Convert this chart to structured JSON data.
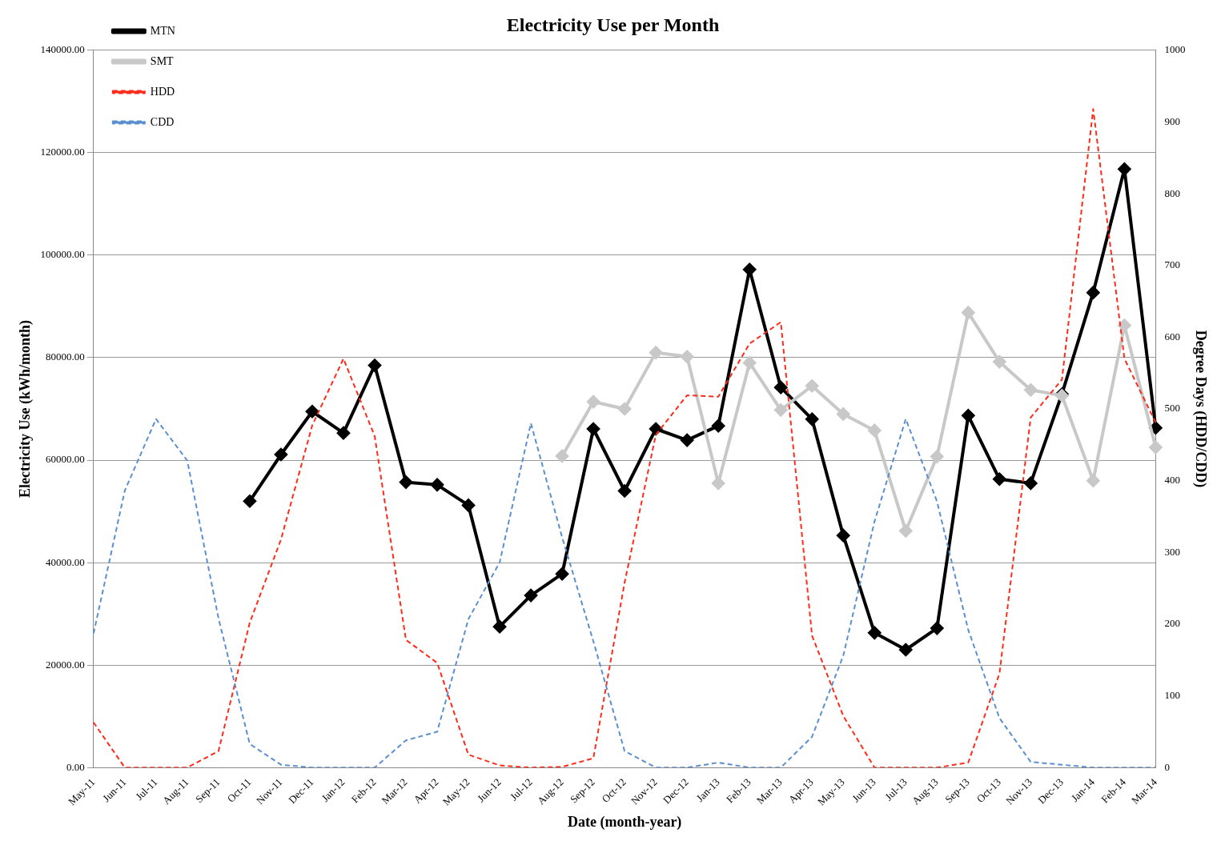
{
  "chart_data": {
    "type": "line",
    "title": "Electricity Use per Month",
    "xlabel": "Date (month-year)",
    "ylabel": "Electricity Use (kWh/month)",
    "y2label": "Degree Days (HDD/CDD)",
    "categories": [
      "May-11",
      "Jun-11",
      "Jul-11",
      "Aug-11",
      "Sep-11",
      "Oct-11",
      "Nov-11",
      "Dec-11",
      "Jan-12",
      "Feb-12",
      "Mar-12",
      "Apr-12",
      "May-12",
      "Jun-12",
      "Jul-12",
      "Aug-12",
      "Sep-12",
      "Oct-12",
      "Nov-12",
      "Dec-12",
      "Jan-13",
      "Feb-13",
      "Mar-13",
      "Apr-13",
      "May-13",
      "Jun-13",
      "Jul-13",
      "Aug-13",
      "Sep-13",
      "Oct-13",
      "Nov-13",
      "Dec-13",
      "Jan-14",
      "Feb-14",
      "Mar-14"
    ],
    "series": [
      {
        "name": "MTN",
        "color": "#000000",
        "marker": "diamond",
        "line_style": "solid",
        "values": [
          null,
          null,
          null,
          null,
          null,
          52000,
          61100,
          69500,
          65300,
          78500,
          55700,
          55200,
          51200,
          27500,
          33600,
          37800,
          66100,
          54000,
          66100,
          63900,
          66700,
          97200,
          74200,
          68000,
          45300,
          26300,
          23000,
          27200,
          68700,
          56300,
          55500,
          72900,
          92700,
          116800,
          66300
        ]
      },
      {
        "name": "SMT",
        "color": "#c8c8c8",
        "marker": "diamond",
        "line_style": "solid",
        "values": [
          null,
          null,
          null,
          null,
          null,
          null,
          null,
          null,
          null,
          null,
          null,
          null,
          null,
          null,
          null,
          60800,
          71400,
          70000,
          81000,
          80200,
          55500,
          79000,
          69800,
          74500,
          69000,
          65800,
          46200,
          60700,
          88800,
          79200,
          73700,
          72600,
          56000,
          86300,
          62500
        ]
      },
      {
        "name": "HDD",
        "color": "#ff2a1a",
        "marker": "none",
        "line_style": "dashed",
        "axis": "y2",
        "values": [
          63,
          0,
          0,
          0,
          23,
          202,
          318,
          477,
          570,
          462,
          178,
          146,
          18,
          3,
          0,
          1,
          13,
          258,
          464,
          519,
          517,
          591,
          621,
          184,
          72,
          0,
          0,
          0,
          7,
          131,
          488,
          541,
          918,
          570,
          481
        ]
      },
      {
        "name": "CDD",
        "color": "#5b8fcf",
        "marker": "none",
        "line_style": "dashed",
        "axis": "y2",
        "values": [
          187,
          386,
          486,
          428,
          208,
          33,
          4,
          0,
          0,
          0,
          38,
          50,
          207,
          286,
          480,
          321,
          176,
          23,
          0,
          0,
          7,
          0,
          0,
          43,
          156,
          343,
          486,
          371,
          192,
          69,
          8,
          4,
          0,
          0,
          0
        ]
      }
    ],
    "ylim": [
      0,
      140000
    ],
    "yticks": [
      {
        "value": 0,
        "label": "0.00"
      },
      {
        "value": 20000,
        "label": "20000.00"
      },
      {
        "value": 40000,
        "label": "40000.00"
      },
      {
        "value": 60000,
        "label": "60000.00"
      },
      {
        "value": 80000,
        "label": "80000.00"
      },
      {
        "value": 100000,
        "label": "100000.00"
      },
      {
        "value": 120000,
        "label": "120000.00"
      },
      {
        "value": 140000,
        "label": "140000.00"
      }
    ],
    "y2lim": [
      0,
      1000
    ],
    "y2ticks": [
      0,
      100,
      200,
      300,
      400,
      500,
      600,
      700,
      800,
      900,
      1000
    ],
    "grid": "y",
    "legend": "top left"
  }
}
